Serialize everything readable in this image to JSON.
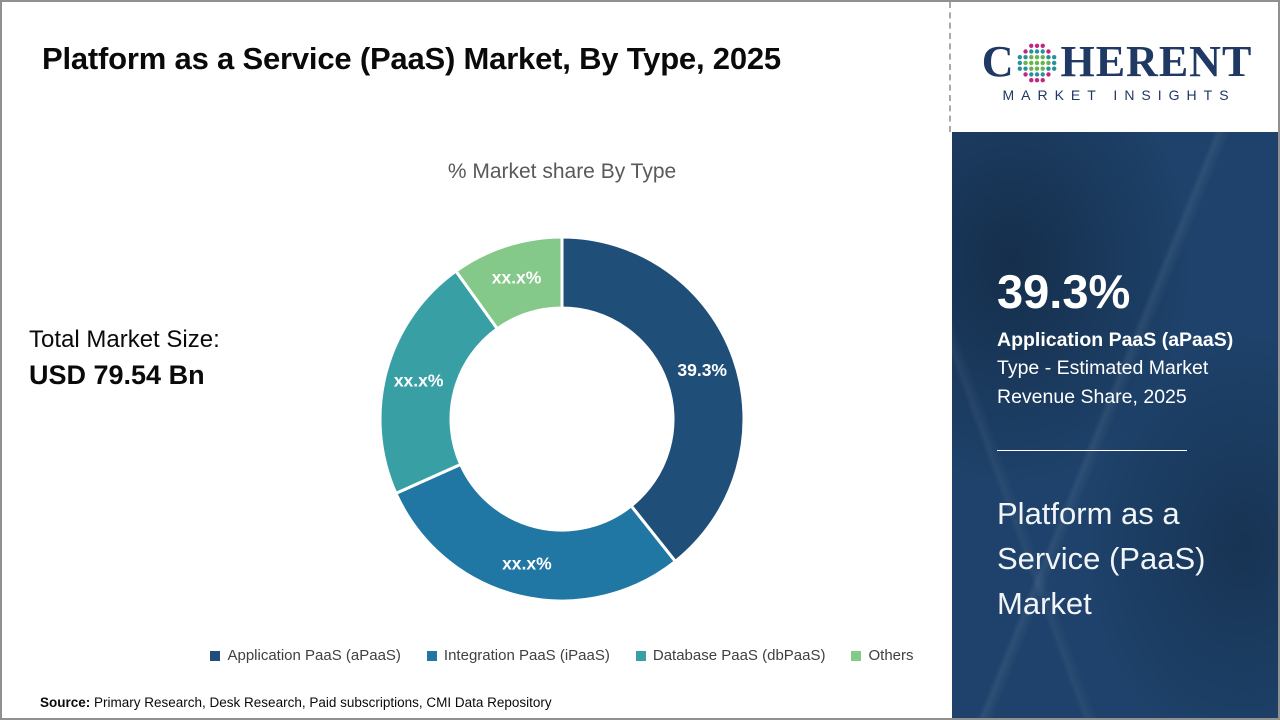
{
  "header": {
    "title": "Platform as a Service (PaaS) Market, By Type, 2025"
  },
  "market_size": {
    "label": "Total Market Size:",
    "value": "USD 79.54 Bn"
  },
  "chart_data": {
    "type": "pie",
    "donut": true,
    "title": "% Market share By Type",
    "categories": [
      "Application PaaS (aPaaS)",
      "Integration PaaS (iPaaS)",
      "Database PaaS (dbPaaS)",
      "Others"
    ],
    "values": [
      39.3,
      29.0,
      21.8,
      9.9
    ],
    "labels": [
      "39.3%",
      "xx.x%",
      "xx.x%",
      "xx.x%"
    ],
    "colors": [
      "#1F4E79",
      "#2077A4",
      "#38A0A5",
      "#85C98A"
    ],
    "legend_position": "bottom",
    "start_angle_deg": 0,
    "inner_radius_ratio": 0.61
  },
  "source": {
    "label": "Source:",
    "text": " Primary Research, Desk Research, Paid subscriptions, CMI Data Repository"
  },
  "sidebar": {
    "logo": {
      "word_start": "C",
      "word_end": "HERENT",
      "tagline": "MARKET INSIGHTS",
      "globe_icon": "dotted-globe",
      "brand_color": "#1F3864"
    },
    "highlight": {
      "value": "39.3%",
      "label_bold": "Application PaaS (aPaaS)",
      "label_rest": "Type - Estimated Market Revenue Share, 2025"
    },
    "market_name": "Platform as a Service (PaaS) Market",
    "panel_color": "#1E426B"
  }
}
